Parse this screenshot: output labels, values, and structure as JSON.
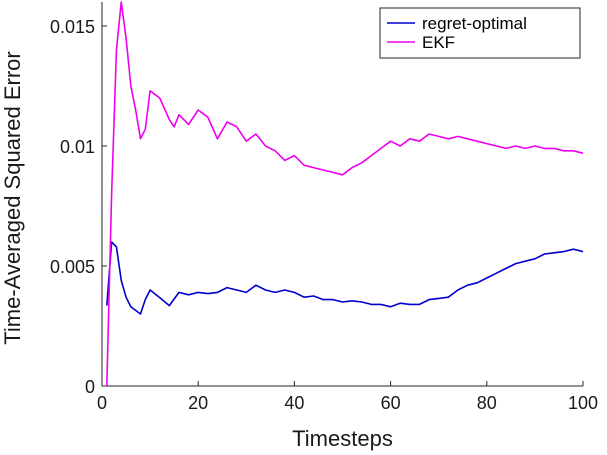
{
  "chart_data": {
    "type": "line",
    "title": "",
    "xlabel": "Timesteps",
    "ylabel": "Time-Averaged Squared Error",
    "xlim": [
      0,
      100
    ],
    "ylim": [
      0,
      0.016
    ],
    "xticks": [
      0,
      20,
      40,
      60,
      80,
      100
    ],
    "xtick_labels": [
      "0",
      "20",
      "40",
      "60",
      "80",
      "100"
    ],
    "yticks": [
      0,
      0.005,
      0.01,
      0.015
    ],
    "ytick_labels": [
      "0",
      "0.005",
      "0.01",
      "0.015"
    ],
    "grid": false,
    "legend_position": "top-right",
    "series": [
      {
        "name": "regret-optimal",
        "color": "#0000cc",
        "points": [
          [
            1,
            0.00335
          ],
          [
            2,
            0.006
          ],
          [
            3,
            0.0058
          ],
          [
            4,
            0.0044
          ],
          [
            5,
            0.0037
          ],
          [
            6,
            0.0033
          ],
          [
            7,
            0.00315
          ],
          [
            8,
            0.003
          ],
          [
            9,
            0.0036
          ],
          [
            10,
            0.004
          ],
          [
            12,
            0.00368
          ],
          [
            14,
            0.00335
          ],
          [
            16,
            0.0039
          ],
          [
            18,
            0.0038
          ],
          [
            20,
            0.0039
          ],
          [
            22,
            0.00385
          ],
          [
            24,
            0.0039
          ],
          [
            26,
            0.0041
          ],
          [
            28,
            0.004
          ],
          [
            30,
            0.0039
          ],
          [
            32,
            0.0042
          ],
          [
            34,
            0.004
          ],
          [
            36,
            0.0039
          ],
          [
            38,
            0.004
          ],
          [
            40,
            0.0039
          ],
          [
            42,
            0.0037
          ],
          [
            44,
            0.00375
          ],
          [
            46,
            0.0036
          ],
          [
            48,
            0.0036
          ],
          [
            50,
            0.0035
          ],
          [
            52,
            0.00355
          ],
          [
            54,
            0.0035
          ],
          [
            56,
            0.0034
          ],
          [
            58,
            0.0034
          ],
          [
            60,
            0.0033
          ],
          [
            62,
            0.00345
          ],
          [
            64,
            0.0034
          ],
          [
            66,
            0.0034
          ],
          [
            68,
            0.0036
          ],
          [
            70,
            0.00365
          ],
          [
            72,
            0.0037
          ],
          [
            74,
            0.004
          ],
          [
            76,
            0.0042
          ],
          [
            78,
            0.0043
          ],
          [
            80,
            0.0045
          ],
          [
            82,
            0.0047
          ],
          [
            84,
            0.0049
          ],
          [
            86,
            0.0051
          ],
          [
            88,
            0.0052
          ],
          [
            90,
            0.0053
          ],
          [
            92,
            0.0055
          ],
          [
            94,
            0.00555
          ],
          [
            96,
            0.0056
          ],
          [
            98,
            0.0057
          ],
          [
            100,
            0.0056
          ]
        ]
      },
      {
        "name": "EKF",
        "color": "#ee00ee",
        "points": [
          [
            1,
            0.0
          ],
          [
            2,
            0.008
          ],
          [
            3,
            0.014
          ],
          [
            4,
            0.016
          ],
          [
            5,
            0.0145
          ],
          [
            6,
            0.0125
          ],
          [
            7,
            0.0115
          ],
          [
            8,
            0.0103
          ],
          [
            9,
            0.0107
          ],
          [
            10,
            0.0123
          ],
          [
            12,
            0.012
          ],
          [
            14,
            0.0111
          ],
          [
            15,
            0.0108
          ],
          [
            16,
            0.0113
          ],
          [
            18,
            0.0109
          ],
          [
            20,
            0.0115
          ],
          [
            22,
            0.0112
          ],
          [
            24,
            0.0103
          ],
          [
            26,
            0.011
          ],
          [
            28,
            0.0108
          ],
          [
            30,
            0.0102
          ],
          [
            32,
            0.0105
          ],
          [
            34,
            0.01
          ],
          [
            36,
            0.0098
          ],
          [
            38,
            0.0094
          ],
          [
            40,
            0.0096
          ],
          [
            42,
            0.0092
          ],
          [
            44,
            0.0091
          ],
          [
            46,
            0.009
          ],
          [
            48,
            0.0089
          ],
          [
            50,
            0.0088
          ],
          [
            52,
            0.0091
          ],
          [
            54,
            0.0093
          ],
          [
            56,
            0.0096
          ],
          [
            58,
            0.0099
          ],
          [
            60,
            0.0102
          ],
          [
            62,
            0.01
          ],
          [
            64,
            0.0103
          ],
          [
            66,
            0.0102
          ],
          [
            68,
            0.0105
          ],
          [
            70,
            0.0104
          ],
          [
            72,
            0.0103
          ],
          [
            74,
            0.0104
          ],
          [
            76,
            0.0103
          ],
          [
            78,
            0.0102
          ],
          [
            80,
            0.0101
          ],
          [
            82,
            0.01
          ],
          [
            84,
            0.0099
          ],
          [
            86,
            0.01
          ],
          [
            88,
            0.0099
          ],
          [
            90,
            0.01
          ],
          [
            92,
            0.0099
          ],
          [
            94,
            0.0099
          ],
          [
            96,
            0.0098
          ],
          [
            98,
            0.0098
          ],
          [
            100,
            0.0097
          ]
        ]
      }
    ]
  }
}
